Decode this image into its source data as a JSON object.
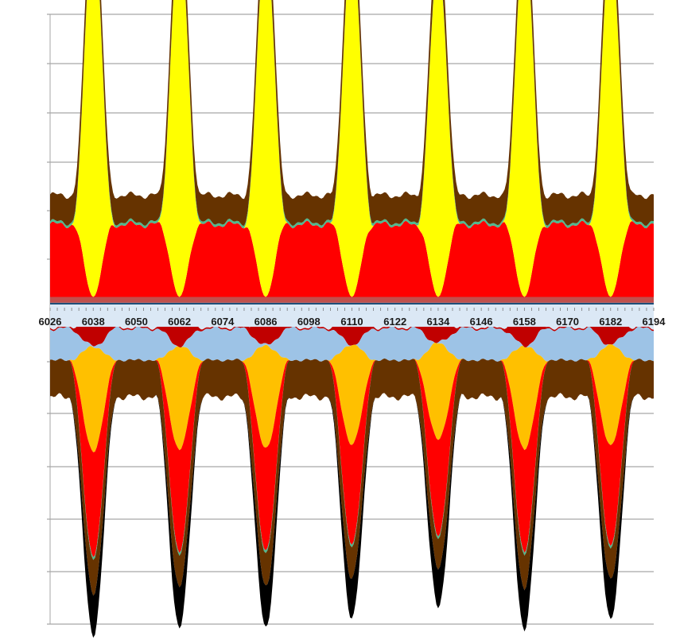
{
  "chart_data": {
    "type": "area",
    "stacked": true,
    "diverging": true,
    "x_range": [
      6026,
      6194
    ],
    "x_ticks": [
      6026,
      6038,
      6050,
      6062,
      6074,
      6086,
      6098,
      6110,
      6122,
      6134,
      6146,
      6158,
      6170,
      6182,
      6194
    ],
    "grid": "horizontal",
    "legend": "none",
    "title": "",
    "xlabel": "",
    "ylabel": "",
    "peak_x": [
      6038,
      6062,
      6086,
      6110,
      6134,
      6158,
      6182
    ],
    "period": 24,
    "y_range": [
      -100,
      100
    ],
    "upper_series": [
      {
        "color": "#1f4e79",
        "base": 1.2,
        "peak": 1.2
      },
      {
        "color": "#c0504d",
        "base": 1.4,
        "peak": 1.4
      },
      {
        "color": "#ff0000",
        "base": 17.5,
        "peak": 0
      },
      {
        "color": "#ffff00",
        "base": 0,
        "peak": 90.0
      },
      {
        "color": "#4fb98f",
        "base": 0.6,
        "peak": 0.6
      },
      {
        "color": "#663300",
        "base": 6.5,
        "peak": 7.5
      }
    ],
    "upper_peak_scale": [
      1.0,
      0.98,
      0.96,
      0.96,
      0.9,
      0.98,
      0.95
    ],
    "lower_series": [
      {
        "color": "#dbe8f5",
        "base": 6.5,
        "peak": 4.0
      },
      {
        "color": "#c00000",
        "base": 0.4,
        "peak": 8.0
      },
      {
        "color": "#9dc3e6",
        "base": 9.0,
        "peak": 0
      },
      {
        "color": "#ffc000",
        "base": 0,
        "peak": 30.0
      },
      {
        "color": "#ff0000",
        "base": 0,
        "peak": 30.0
      },
      {
        "color": "#4fb98f",
        "base": 0,
        "peak": 0.8
      },
      {
        "color": "#663300",
        "base": 10.5,
        "peak": 9.5
      },
      {
        "color": "#000000",
        "base": 0,
        "peak": 12.0
      }
    ],
    "lower_peak_scale": [
      1.0,
      0.98,
      0.98,
      0.95,
      0.92,
      0.98,
      0.96
    ],
    "colors": {
      "grid": "#a6a6a6",
      "axis_band": "#dbe8f5"
    }
  }
}
